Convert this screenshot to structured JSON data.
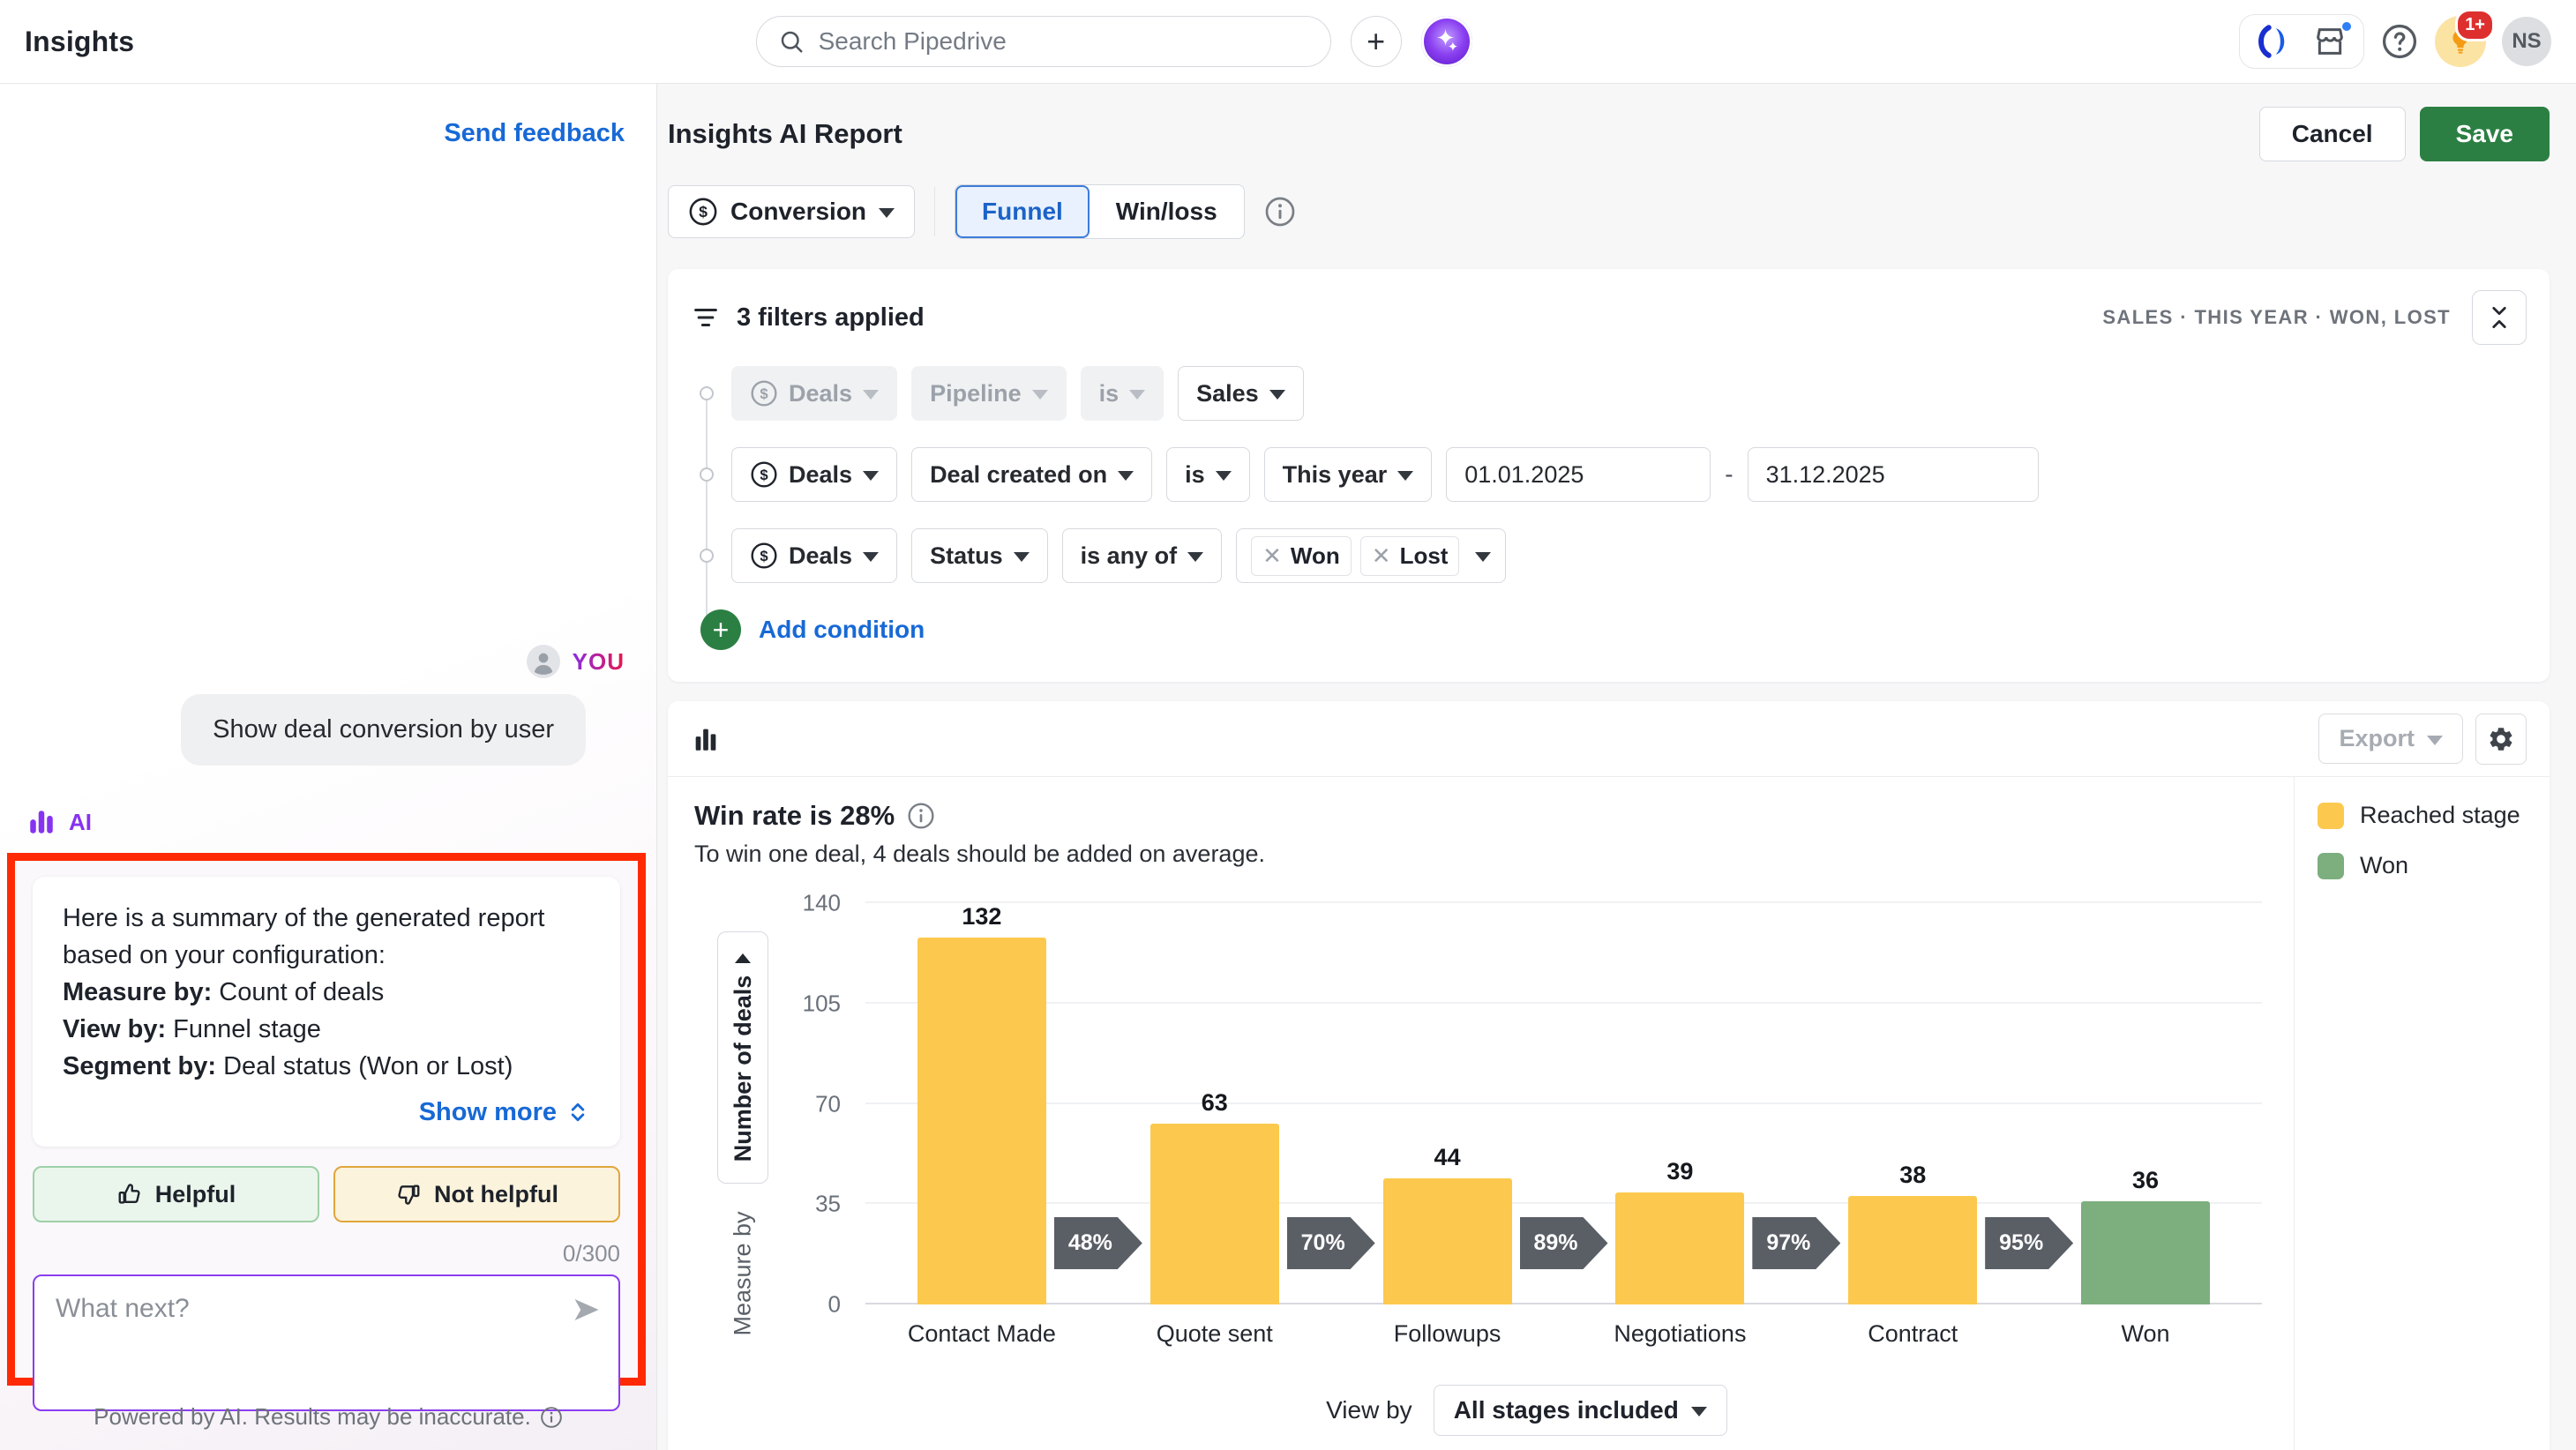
{
  "topbar": {
    "app_title": "Insights",
    "search_placeholder": "Search Pipedrive",
    "notification_badge": "1+",
    "avatar_initials": "NS"
  },
  "sidebar": {
    "send_feedback": "Send feedback",
    "chat": {
      "you_label": "YOU",
      "user_message": "Show deal conversion by user",
      "ai_label": "AI",
      "summary_intro": "Here is a summary of the generated report based on your configuration:",
      "summary_items": [
        {
          "label": "Measure by:",
          "value": " Count of deals"
        },
        {
          "label": "View by:",
          "value": " Funnel stage"
        },
        {
          "label": "Segment by:",
          "value": " Deal status (Won or Lost)"
        }
      ],
      "show_more": "Show more",
      "helpful": "Helpful",
      "not_helpful": "Not helpful",
      "char_counter": "0/300",
      "input_placeholder": "What next?",
      "disclaimer": "Powered by AI. Results may be inaccurate."
    }
  },
  "header": {
    "title": "Insights AI Report",
    "cancel": "Cancel",
    "save": "Save"
  },
  "controls": {
    "report_type": "Conversion",
    "tabs": [
      {
        "label": "Funnel"
      },
      {
        "label": "Win/loss"
      }
    ]
  },
  "filters": {
    "summary": "3 filters applied",
    "applied_caps": "SALES  ·  THIS YEAR  ·  WON, LOST",
    "rows": [
      {
        "entity": "Deals",
        "field": "Pipeline",
        "operator": "is",
        "value": "Sales"
      },
      {
        "entity": "Deals",
        "field": "Deal created on",
        "operator": "is",
        "value": "This year",
        "date_from": "01.01.2025",
        "date_to": "31.12.2025"
      },
      {
        "entity": "Deals",
        "field": "Status",
        "operator": "is any of",
        "values": [
          "Won",
          "Lost"
        ]
      }
    ],
    "add_condition": "Add condition"
  },
  "chart_card": {
    "export": "Export",
    "title": "Win rate is 28%",
    "subtitle": "To win one deal, 4 deals should be added on average.",
    "measure_button": "Number of deals",
    "measure_label": "Measure by",
    "view_by_label": "View by",
    "view_by_value": "All stages included",
    "legend": [
      {
        "label": "Reached stage",
        "color": "#FCC94E"
      },
      {
        "label": "Won",
        "color": "#7CAE7E"
      }
    ]
  },
  "chart_data": {
    "type": "bar",
    "title": "Win rate is 28%",
    "subtitle": "To win one deal, 4 deals should be added on average.",
    "categories": [
      "Contact Made",
      "Quote sent",
      "Followups",
      "Negotiations",
      "Contract",
      "Won"
    ],
    "values": [
      132,
      63,
      44,
      39,
      38,
      36
    ],
    "bar_colors": [
      "#FCC94E",
      "#FCC94E",
      "#FCC94E",
      "#FCC94E",
      "#FCC94E",
      "#7CAE7E"
    ],
    "conversion_rates": [
      "48%",
      "70%",
      "89%",
      "97%",
      "95%"
    ],
    "ylabel": "Number of deals",
    "xlabel": "",
    "yticks": [
      0,
      35,
      70,
      105,
      140
    ],
    "ylim": [
      0,
      140
    ],
    "grid": true,
    "legend_position": "right"
  }
}
